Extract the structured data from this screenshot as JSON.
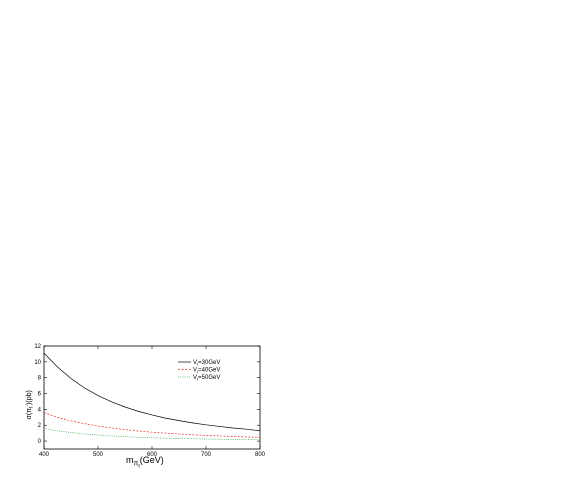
{
  "chart_data": {
    "type": "line",
    "xlabel": {
      "prefix": "m",
      "sub": "π",
      "subsub": "t",
      "suffix": "(GeV)"
    },
    "ylabel": {
      "text": "σ(π",
      "sub": "t",
      "sup": "-",
      "suffix": ")(pb)"
    },
    "xlim": [
      400,
      800
    ],
    "ylim": [
      -1,
      12
    ],
    "xticks": [
      400,
      500,
      600,
      700,
      800
    ],
    "yticks": [
      0,
      2,
      4,
      6,
      8,
      10,
      12
    ],
    "legend_position": "top-right",
    "series": [
      {
        "name": "30GeV",
        "legend": {
          "v": "V",
          "sub": "t",
          "rest": "=30GeV"
        },
        "color": "#000000",
        "dash": "",
        "x": [
          400,
          425,
          450,
          475,
          500,
          525,
          550,
          575,
          600,
          625,
          650,
          675,
          700,
          725,
          750,
          775,
          800
        ],
        "y": [
          11.1,
          9.35,
          7.9,
          6.7,
          5.75,
          4.95,
          4.3,
          3.75,
          3.3,
          2.9,
          2.58,
          2.3,
          2.05,
          1.85,
          1.65,
          1.5,
          1.3
        ]
      },
      {
        "name": "40GeV",
        "legend": {
          "v": "V",
          "sub": "t",
          "rest": "=40GeV"
        },
        "color": "#e8302a",
        "dash": "2,1.5",
        "x": [
          400,
          425,
          450,
          475,
          500,
          525,
          550,
          575,
          600,
          625,
          650,
          675,
          700,
          725,
          750,
          775,
          800
        ],
        "y": [
          3.6,
          3.0,
          2.55,
          2.2,
          1.9,
          1.65,
          1.45,
          1.27,
          1.12,
          1.0,
          0.9,
          0.8,
          0.72,
          0.65,
          0.58,
          0.52,
          0.46
        ]
      },
      {
        "name": "50GeV",
        "legend": {
          "v": "V",
          "sub": "t",
          "rest": "=50GeV"
        },
        "color": "#3aa84a",
        "dash": "1,1.2",
        "x": [
          400,
          425,
          450,
          475,
          500,
          525,
          550,
          575,
          600,
          625,
          650,
          675,
          700,
          725,
          750,
          775,
          800
        ],
        "y": [
          1.6,
          1.3,
          1.08,
          0.9,
          0.76,
          0.65,
          0.56,
          0.48,
          0.42,
          0.37,
          0.33,
          0.29,
          0.26,
          0.23,
          0.21,
          0.19,
          0.17
        ]
      }
    ]
  }
}
